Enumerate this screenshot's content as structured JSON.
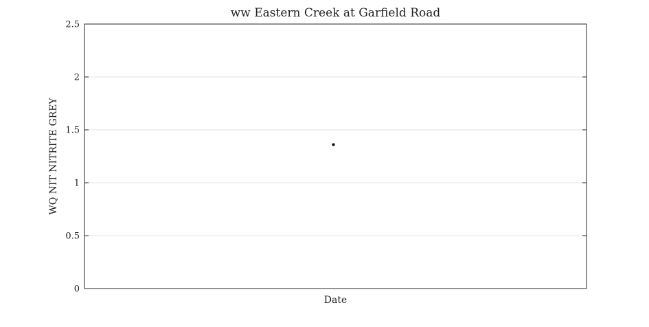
{
  "chart_data": {
    "type": "scatter",
    "title": "ww Eastern Creek at Garfield Road",
    "xlabel": "Date",
    "ylabel": "WQ NIT NITRITE GREY",
    "ylim": [
      0,
      2.5
    ],
    "yticks": [
      0,
      0.5,
      1,
      1.5,
      2,
      2.5
    ],
    "ytick_labels": [
      "0",
      "0.5",
      "1",
      "1.5",
      "2",
      "2.5"
    ],
    "xlim": [
      0,
      1
    ],
    "grid": true,
    "series": [
      {
        "x": [
          0.5
        ],
        "y": [
          1.36
        ],
        "color": "#000000"
      }
    ]
  }
}
